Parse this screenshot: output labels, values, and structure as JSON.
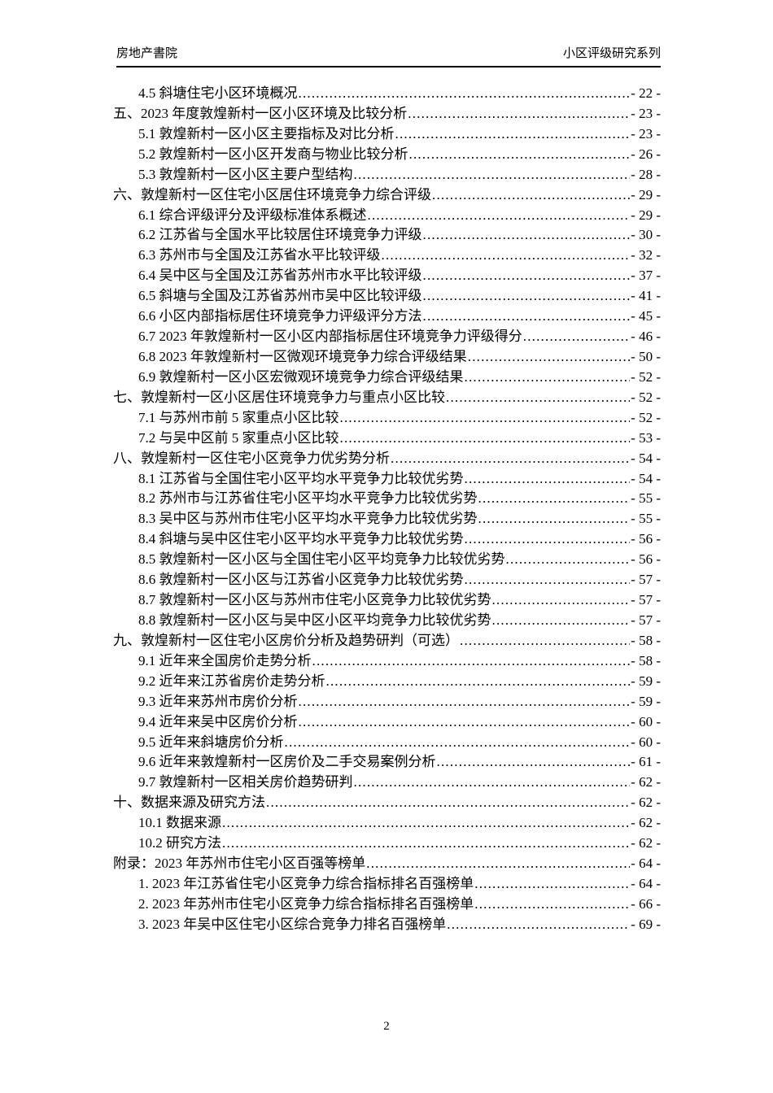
{
  "header": {
    "left": "房地产書院",
    "right": "小区评级研究系列"
  },
  "toc": {
    "entries": [
      {
        "level": 1,
        "label": "4.5 斜塘住宅小区环境概况",
        "page": "- 22 -"
      },
      {
        "level": 0,
        "label": "五、2023 年度敦煌新村一区小区环境及比较分析",
        "page": "- 23 -"
      },
      {
        "level": 1,
        "label": "5.1 敦煌新村一区小区主要指标及对比分析",
        "page": "- 23 -"
      },
      {
        "level": 1,
        "label": "5.2 敦煌新村一区小区开发商与物业比较分析",
        "page": "- 26 -"
      },
      {
        "level": 1,
        "label": "5.3 敦煌新村一区小区主要户型结构",
        "page": "- 28 -"
      },
      {
        "level": 0,
        "label": "六、敦煌新村一区住宅小区居住环境竞争力综合评级",
        "page": "- 29 -"
      },
      {
        "level": 1,
        "label": "6.1 综合评级评分及评级标准体系概述",
        "page": "- 29 -"
      },
      {
        "level": 1,
        "label": "6.2 江苏省与全国水平比较居住环境竞争力评级",
        "page": "- 30 -"
      },
      {
        "level": 1,
        "label": "6.3 苏州市与全国及江苏省水平比较评级",
        "page": "- 32 -"
      },
      {
        "level": 1,
        "label": "6.4 吴中区与全国及江苏省苏州市水平比较评级",
        "page": "- 37 -"
      },
      {
        "level": 1,
        "label": "6.5 斜塘与全国及江苏省苏州市吴中区比较评级",
        "page": "- 41 -"
      },
      {
        "level": 1,
        "label": "6.6 小区内部指标居住环境竞争力评级评分方法",
        "page": "- 45 -"
      },
      {
        "level": 1,
        "label": "6.7 2023 年敦煌新村一区小区内部指标居住环境竞争力评级得分",
        "page": "- 46 -"
      },
      {
        "level": 1,
        "label": "6.8 2023 年敦煌新村一区微观环境竞争力综合评级结果",
        "page": "- 50 -"
      },
      {
        "level": 1,
        "label": "6.9 敦煌新村一区小区宏微观环境竞争力综合评级结果",
        "page": "- 52 -"
      },
      {
        "level": 0,
        "label": "七、敦煌新村一区小区居住环境竞争力与重点小区比较",
        "page": "- 52 -"
      },
      {
        "level": 1,
        "label": "7.1 与苏州市前 5 家重点小区比较",
        "page": "- 52 -"
      },
      {
        "level": 1,
        "label": "7.2 与吴中区前 5 家重点小区比较",
        "page": "- 53 -"
      },
      {
        "level": 0,
        "label": "八、敦煌新村一区住宅小区竞争力优劣势分析",
        "page": "- 54 -"
      },
      {
        "level": 1,
        "label": "8.1 江苏省与全国住宅小区平均水平竞争力比较优劣势",
        "page": "- 54 -"
      },
      {
        "level": 1,
        "label": "8.2 苏州市与江苏省住宅小区平均水平竞争力比较优劣势",
        "page": "- 55 -"
      },
      {
        "level": 1,
        "label": "8.3 吴中区与苏州市住宅小区平均水平竞争力比较优劣势",
        "page": "- 55 -"
      },
      {
        "level": 1,
        "label": "8.4 斜塘与吴中区住宅小区平均水平竞争力比较优劣势",
        "page": "- 56 -"
      },
      {
        "level": 1,
        "label": "8.5 敦煌新村一区小区与全国住宅小区平均竞争力比较优劣势",
        "page": "- 56 -"
      },
      {
        "level": 1,
        "label": "8.6 敦煌新村一区小区与江苏省小区竞争力比较优劣势",
        "page": "- 57 -"
      },
      {
        "level": 1,
        "label": "8.7 敦煌新村一区小区与苏州市住宅小区竞争力比较优劣势",
        "page": "- 57 -"
      },
      {
        "level": 1,
        "label": "8.8 敦煌新村一区小区与吴中区小区平均竞争力比较优劣势",
        "page": "- 57 -"
      },
      {
        "level": 0,
        "label": "九、敦煌新村一区住宅小区房价分析及趋势研判（可选）",
        "page": "- 58 -"
      },
      {
        "level": 1,
        "label": "9.1 近年来全国房价走势分析",
        "page": "- 58 -"
      },
      {
        "level": 1,
        "label": "9.2 近年来江苏省房价走势分析",
        "page": "- 59 -"
      },
      {
        "level": 1,
        "label": "9.3 近年来苏州市房价分析",
        "page": "- 59 -"
      },
      {
        "level": 1,
        "label": "9.4 近年来吴中区房价分析",
        "page": "- 60 -"
      },
      {
        "level": 1,
        "label": "9.5 近年来斜塘房价分析",
        "page": "- 60 -"
      },
      {
        "level": 1,
        "label": "9.6 近年来敦煌新村一区房价及二手交易案例分析",
        "page": "- 61 -"
      },
      {
        "level": 1,
        "label": "9.7 敦煌新村一区相关房价趋势研判",
        "page": "- 62 -"
      },
      {
        "level": 0,
        "label": "十、数据来源及研究方法",
        "page": "- 62 -"
      },
      {
        "level": 1,
        "label": "10.1 数据来源",
        "page": "- 62 -"
      },
      {
        "level": 1,
        "label": "10.2 研究方法",
        "page": "- 62 -"
      },
      {
        "level": 0,
        "label": "附录：2023 年苏州市住宅小区百强等榜单",
        "page": "- 64 -"
      },
      {
        "level": 1,
        "label": "1. 2023 年江苏省住宅小区竞争力综合指标排名百强榜单",
        "page": "- 64 -"
      },
      {
        "level": 1,
        "label": "2. 2023 年苏州市住宅小区竞争力综合指标排名百强榜单",
        "page": "- 66 -"
      },
      {
        "level": 1,
        "label": "3. 2023 年吴中区住宅小区综合竞争力排名百强榜单",
        "page": "- 69 -"
      }
    ]
  },
  "footer": {
    "page_number": "2"
  }
}
